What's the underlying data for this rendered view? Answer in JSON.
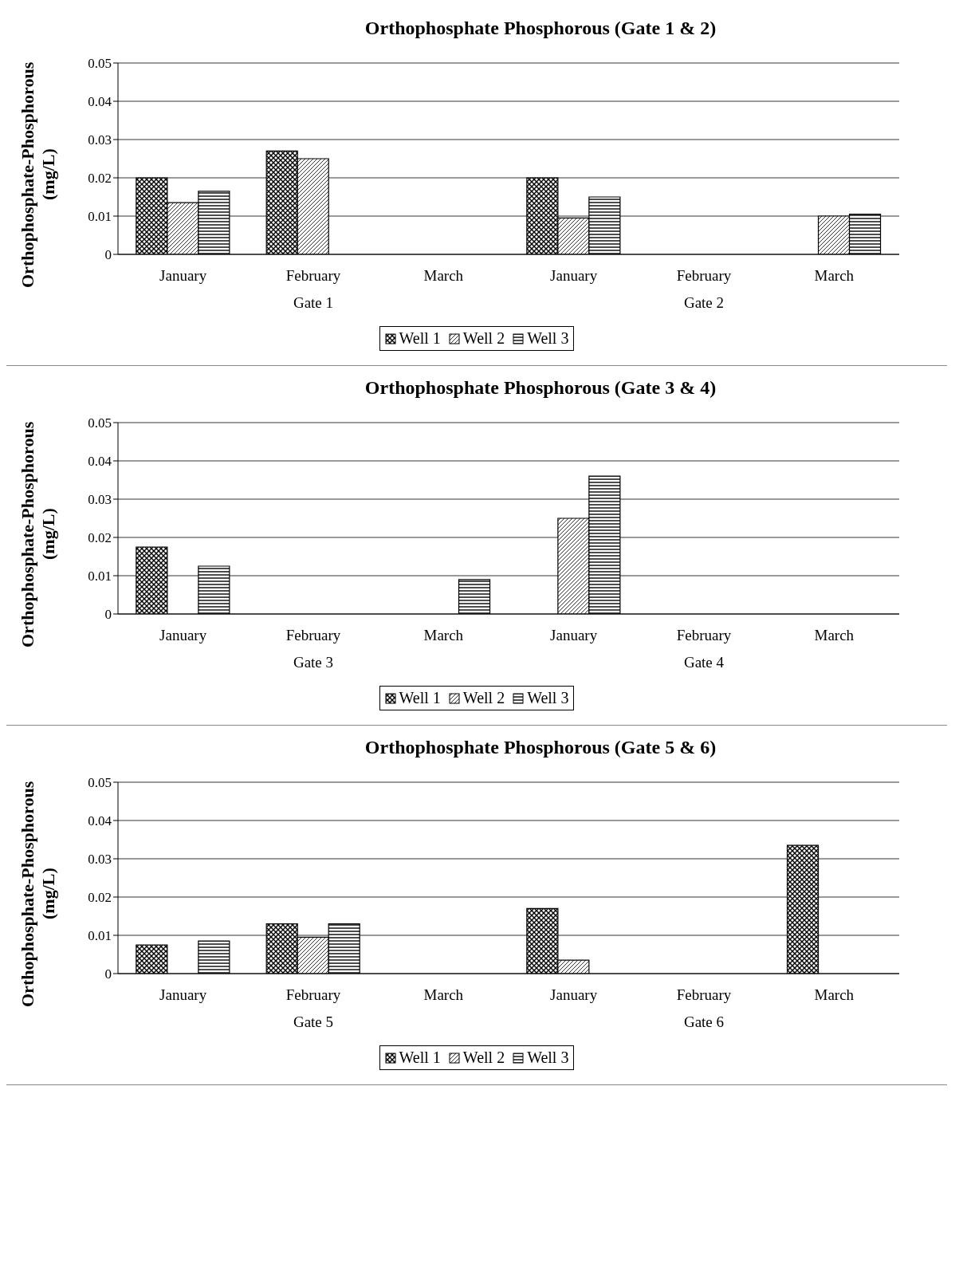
{
  "chart_data": [
    {
      "type": "bar",
      "title": "Orthophosphate Phosphorous (Gate 1 & 2)",
      "ylabel": "Orthophosphate-Phosphorous (mg/L)",
      "categories": [
        "January",
        "February",
        "March",
        "January",
        "February",
        "March"
      ],
      "annotations": [
        "Gate 1",
        "Gate 2"
      ],
      "ylim": [
        0,
        0.05
      ],
      "yticks": [
        0,
        0.01,
        0.02,
        0.03,
        0.04,
        0.05
      ],
      "grid": "y",
      "legend": "bottom",
      "series": [
        {
          "name": "Well 1",
          "color": "#000000",
          "values": [
            0.02,
            0.027,
            null,
            0.02,
            null,
            null
          ]
        },
        {
          "name": "Well 2",
          "color": "#000000",
          "values": [
            0.0135,
            0.025,
            null,
            0.0095,
            null,
            0.01
          ]
        },
        {
          "name": "Well 3",
          "color": "#000000",
          "values": [
            0.0165,
            null,
            null,
            0.015,
            null,
            0.0105
          ]
        }
      ]
    },
    {
      "type": "bar",
      "title": "Orthophosphate Phosphorous (Gate 3 & 4)",
      "ylabel": "Orthophosphate-Phosphorous (mg/L)",
      "categories": [
        "January",
        "February",
        "March",
        "January",
        "February",
        "March"
      ],
      "annotations": [
        "Gate 3",
        "Gate 4"
      ],
      "ylim": [
        0,
        0.05
      ],
      "yticks": [
        0,
        0.01,
        0.02,
        0.03,
        0.04,
        0.05
      ],
      "grid": "y",
      "legend": "bottom",
      "series": [
        {
          "name": "Well 1",
          "color": "#000000",
          "values": [
            0.0175,
            null,
            null,
            null,
            null,
            null
          ]
        },
        {
          "name": "Well 2",
          "color": "#000000",
          "values": [
            null,
            null,
            null,
            0.025,
            null,
            null
          ]
        },
        {
          "name": "Well 3",
          "color": "#000000",
          "values": [
            0.0125,
            null,
            0.009,
            0.036,
            null,
            null
          ]
        }
      ]
    },
    {
      "type": "bar",
      "title": "Orthophosphate Phosphorous (Gate 5 & 6)",
      "ylabel": "Orthophosphate-Phosphorous (mg/L)",
      "categories": [
        "January",
        "February",
        "March",
        "January",
        "February",
        "March"
      ],
      "annotations": [
        "Gate 5",
        "Gate 6"
      ],
      "ylim": [
        0,
        0.05
      ],
      "yticks": [
        0,
        0.01,
        0.02,
        0.03,
        0.04,
        0.05
      ],
      "grid": "y",
      "legend": "bottom",
      "series": [
        {
          "name": "Well 1",
          "color": "#000000",
          "values": [
            0.0075,
            0.013,
            null,
            0.017,
            null,
            0.0335
          ]
        },
        {
          "name": "Well 2",
          "color": "#000000",
          "values": [
            null,
            0.0095,
            null,
            0.0035,
            null,
            null
          ]
        },
        {
          "name": "Well 3",
          "color": "#000000",
          "values": [
            0.0085,
            0.013,
            null,
            null,
            null,
            null
          ]
        }
      ]
    }
  ]
}
